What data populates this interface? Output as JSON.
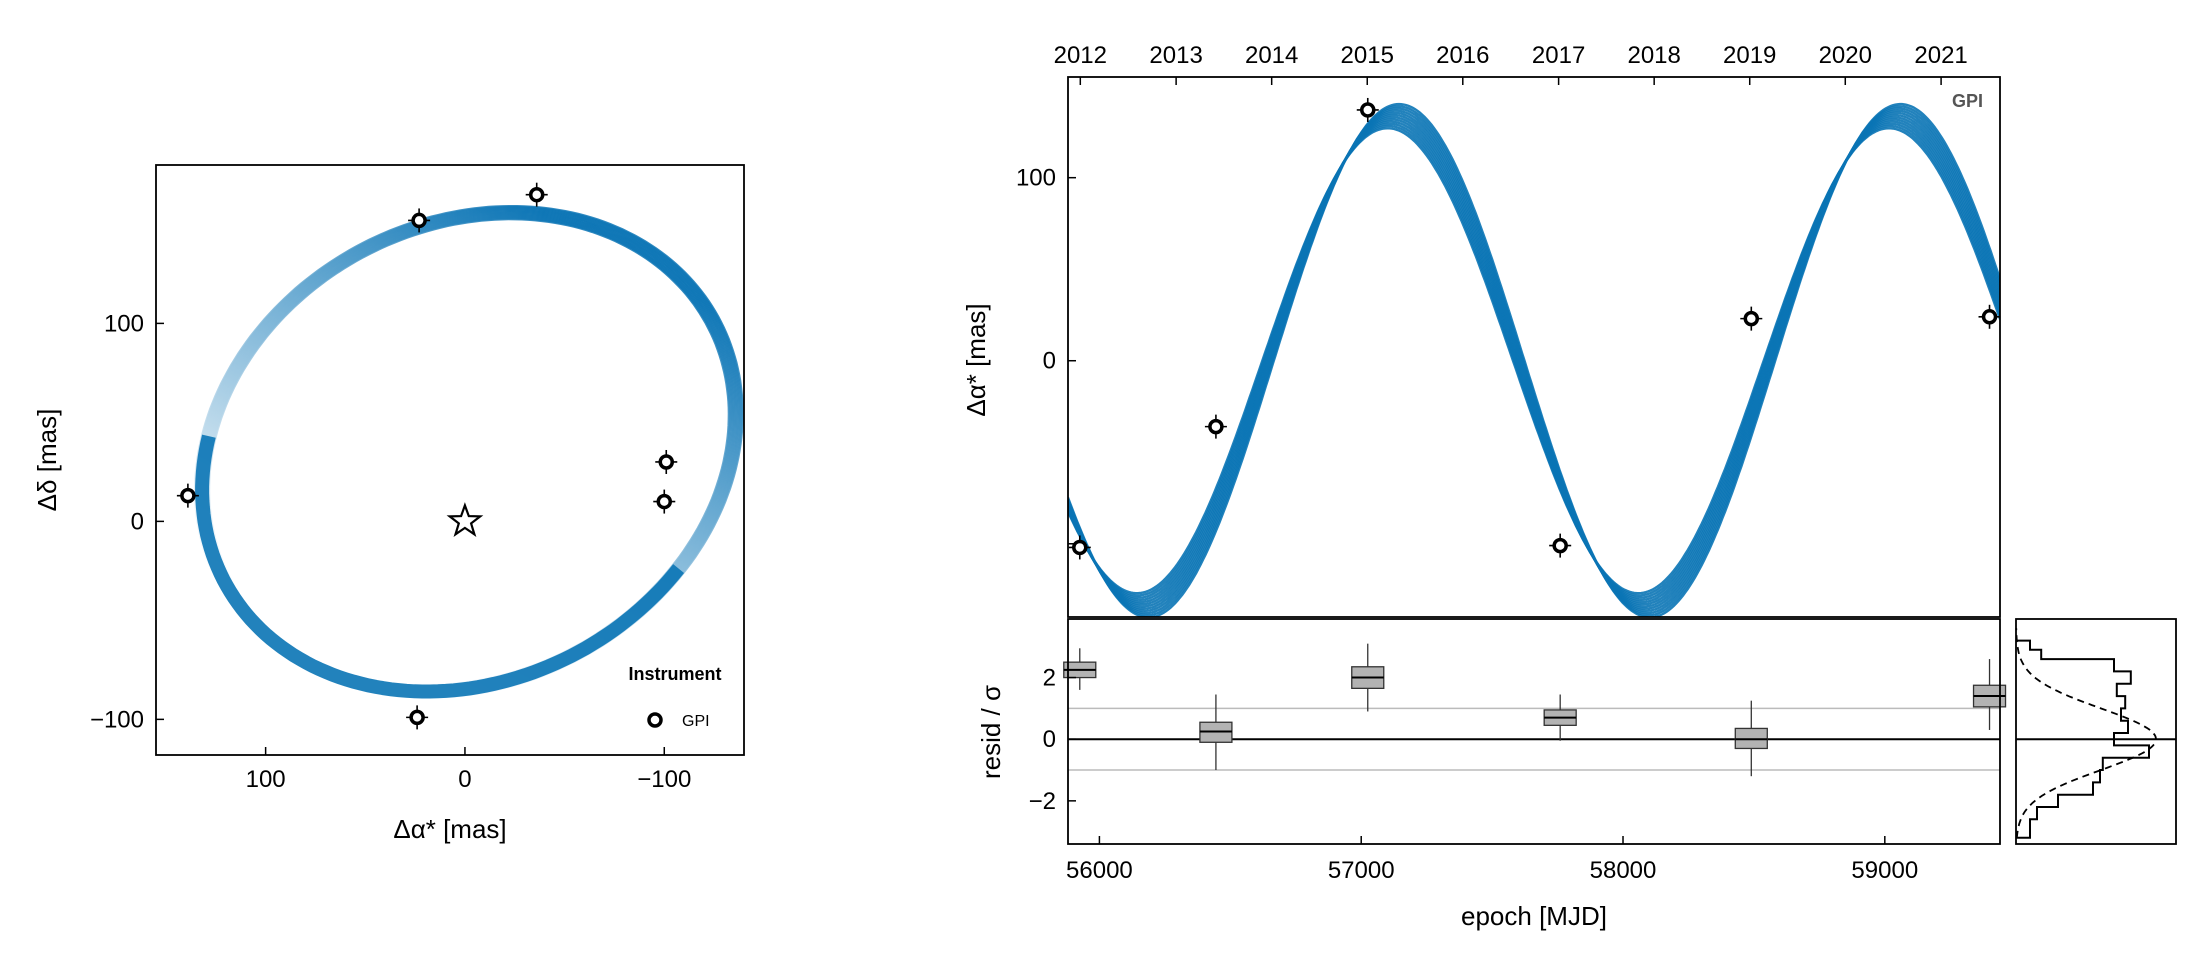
{
  "chart_data": [
    {
      "type": "scatter",
      "panel": "sky-orbit",
      "xlabel": "Δα* [mas]",
      "ylabel": "Δδ [mas]",
      "xlim": [
        155,
        -140
      ],
      "ylim": [
        -118,
        180
      ],
      "x_ticks": [
        100,
        0,
        -100
      ],
      "x_tick_labels": [
        "100",
        "0",
        "−100"
      ],
      "y_ticks": [
        -100,
        0,
        100
      ],
      "y_tick_labels": [
        "−100",
        "0",
        "100"
      ],
      "legend": {
        "title": "Instrument",
        "entries": [
          "GPI"
        ],
        "placement": "bottom-right"
      },
      "star": {
        "x": 0,
        "y": 0
      },
      "series": [
        {
          "name": "GPI",
          "points": [
            {
              "x": 139,
              "y": 13
            },
            {
              "x": 23,
              "y": 152
            },
            {
              "x": -36,
              "y": 165
            },
            {
              "x": -101,
              "y": 30
            },
            {
              "x": -100,
              "y": 10
            },
            {
              "x": 24,
              "y": -99
            }
          ]
        }
      ],
      "orbit_color": "#0a74b5"
    },
    {
      "type": "line",
      "panel": "ra-vs-time",
      "ylabel": "Δα* [mas]",
      "xlim": [
        55880,
        59440
      ],
      "ylim": [
        -140,
        155
      ],
      "y_ticks": [
        100,
        0
      ],
      "y_tick_labels": [
        "100",
        "0"
      ],
      "top_axis_ticks": [
        "2012",
        "2013",
        "2014",
        "2015",
        "2016",
        "2017",
        "2018",
        "2019",
        "2020",
        "2021"
      ],
      "instrument_tag": "GPI",
      "series": [
        {
          "name": "GPI",
          "points": [
            {
              "x": 55925,
              "y": -102
            },
            {
              "x": 56445,
              "y": -36
            },
            {
              "x": 57025,
              "y": 137
            },
            {
              "x": 57760,
              "y": -101
            },
            {
              "x": 58490,
              "y": 23
            },
            {
              "x": 59400,
              "y": 24
            }
          ]
        }
      ],
      "model_color": "#0a74b5"
    },
    {
      "type": "box",
      "panel": "residuals",
      "xlabel": "epoch [MJD]",
      "ylabel": "resid / σ",
      "xlim": [
        55880,
        59440
      ],
      "ylim": [
        -3.4,
        3.9
      ],
      "x_ticks": [
        56000,
        57000,
        58000,
        59000
      ],
      "x_tick_labels": [
        "56000",
        "57000",
        "58000",
        "59000"
      ],
      "y_ticks": [
        2,
        0,
        -2
      ],
      "y_tick_labels": [
        "2",
        "0",
        "−2"
      ],
      "ref_lines": [
        1,
        0,
        -1
      ],
      "boxes": [
        {
          "x": 55925,
          "q1": 2.0,
          "median": 2.25,
          "q3": 2.5,
          "lo": 1.6,
          "hi": 2.95
        },
        {
          "x": 56445,
          "q1": -0.1,
          "median": 0.25,
          "q3": 0.55,
          "lo": -1.0,
          "hi": 1.45
        },
        {
          "x": 57025,
          "q1": 1.65,
          "median": 2.0,
          "q3": 2.35,
          "lo": 0.9,
          "hi": 3.1
        },
        {
          "x": 57760,
          "q1": 0.45,
          "median": 0.7,
          "q3": 0.95,
          "lo": -0.05,
          "hi": 1.45
        },
        {
          "x": 58490,
          "q1": -0.3,
          "median": 0.0,
          "q3": 0.35,
          "lo": -1.2,
          "hi": 1.25
        },
        {
          "x": 59400,
          "q1": 1.05,
          "median": 1.4,
          "q3": 1.75,
          "lo": 0.3,
          "hi": 2.6
        }
      ]
    },
    {
      "type": "histogram",
      "panel": "residual-histogram",
      "orientation": "horizontal",
      "bin_edges": [
        -3.2,
        -2.6,
        -2.2,
        -1.8,
        -1.4,
        -1.0,
        -0.6,
        -0.2,
        0.2,
        0.6,
        1.0,
        1.4,
        1.8,
        2.2,
        2.6,
        2.9,
        3.2
      ],
      "counts": [
        0.1,
        0.15,
        0.3,
        0.55,
        0.6,
        0.62,
        0.95,
        0.7,
        0.8,
        0.75,
        0.78,
        0.72,
        0.82,
        0.7,
        0.18,
        0.1
      ],
      "reference_curve": "gaussian (dashed)"
    }
  ]
}
